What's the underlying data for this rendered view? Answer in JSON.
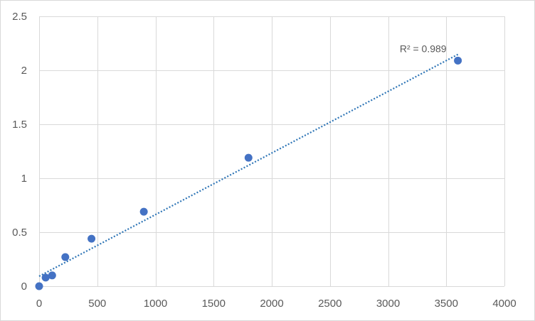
{
  "chart_data": {
    "type": "scatter",
    "title": "",
    "xlabel": "",
    "ylabel": "",
    "xlim": [
      0,
      4000
    ],
    "ylim": [
      0,
      2.5
    ],
    "x_ticks": [
      0,
      500,
      1000,
      1500,
      2000,
      2500,
      3000,
      3500,
      4000
    ],
    "y_ticks": [
      0,
      0.5,
      1,
      1.5,
      2,
      2.5
    ],
    "x_tick_labels": [
      "0",
      "500",
      "1000",
      "1500",
      "2000",
      "2500",
      "3000",
      "3500",
      "4000"
    ],
    "y_tick_labels": [
      "0",
      "0.5",
      "1",
      "1.5",
      "2",
      "2.5"
    ],
    "grid": true,
    "legend": "none",
    "marker_color": "#4472c4",
    "trendline_color": "#2e75b6",
    "series": [
      {
        "x": [
          0,
          56,
          112,
          225,
          450,
          900,
          1800,
          3600
        ],
        "y": [
          0.0,
          0.08,
          0.1,
          0.27,
          0.44,
          0.69,
          1.19,
          2.09
        ]
      }
    ],
    "trendline": {
      "type": "linear",
      "x": [
        0,
        3600
      ],
      "y": [
        0.092,
        2.147
      ],
      "label": "R² = 0.989"
    }
  }
}
